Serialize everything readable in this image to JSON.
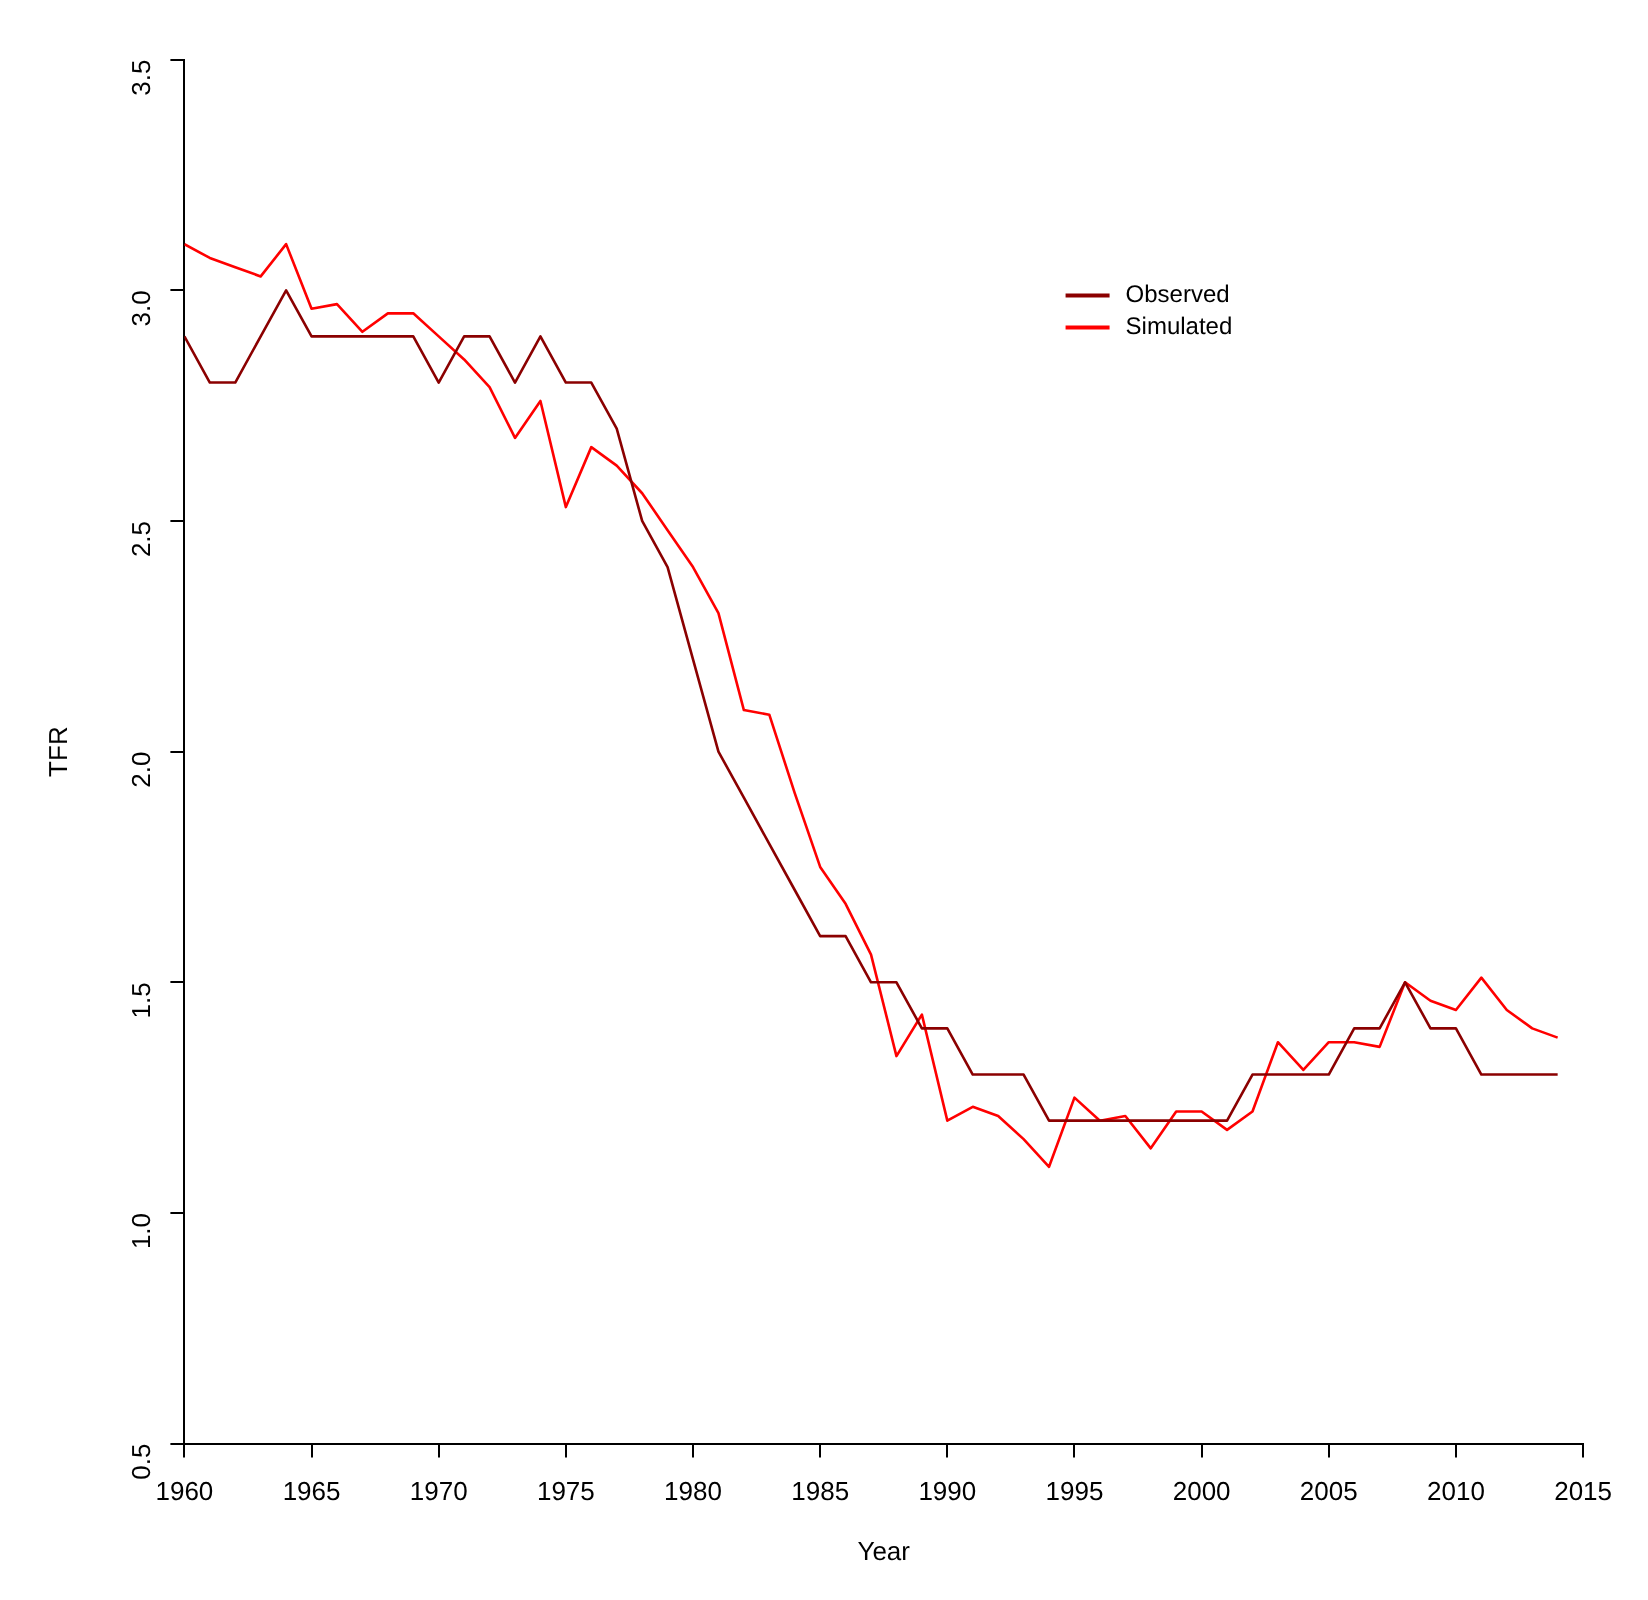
{
  "chart_data": {
    "type": "line",
    "xlabel": "Year",
    "ylabel": "TFR",
    "x": [
      1960,
      1961,
      1962,
      1963,
      1964,
      1965,
      1966,
      1967,
      1968,
      1969,
      1970,
      1971,
      1972,
      1973,
      1974,
      1975,
      1976,
      1977,
      1978,
      1979,
      1980,
      1981,
      1982,
      1983,
      1984,
      1985,
      1986,
      1987,
      1988,
      1989,
      1990,
      1991,
      1992,
      1993,
      1994,
      1995,
      1996,
      1997,
      1998,
      1999,
      2000,
      2001,
      2002,
      2003,
      2004,
      2005,
      2006,
      2007,
      2008,
      2009,
      2010,
      2011,
      2012,
      2013,
      2014
    ],
    "series": [
      {
        "name": "Observed",
        "color": "#8b0000",
        "values": [
          2.9,
          2.8,
          2.8,
          2.9,
          3.0,
          2.9,
          2.9,
          2.9,
          2.9,
          2.9,
          2.8,
          2.9,
          2.9,
          2.8,
          2.9,
          2.8,
          2.8,
          2.7,
          2.5,
          2.4,
          2.2,
          2.0,
          1.9,
          1.8,
          1.7,
          1.6,
          1.6,
          1.5,
          1.5,
          1.4,
          1.4,
          1.3,
          1.3,
          1.3,
          1.2,
          1.2,
          1.2,
          1.2,
          1.2,
          1.2,
          1.2,
          1.2,
          1.3,
          1.3,
          1.3,
          1.3,
          1.4,
          1.4,
          1.5,
          1.4,
          1.4,
          1.3,
          1.3,
          1.3,
          1.3
        ]
      },
      {
        "name": "Simulated",
        "color": "#ff0000",
        "values": [
          3.1,
          3.07,
          3.05,
          3.03,
          3.1,
          2.96,
          2.97,
          2.91,
          2.95,
          2.95,
          2.9,
          2.85,
          2.79,
          2.68,
          2.76,
          2.53,
          2.66,
          2.62,
          2.56,
          2.48,
          2.4,
          2.3,
          2.09,
          2.08,
          1.91,
          1.75,
          1.67,
          1.56,
          1.34,
          1.43,
          1.2,
          1.23,
          1.21,
          1.16,
          1.1,
          1.25,
          1.2,
          1.21,
          1.14,
          1.22,
          1.22,
          1.18,
          1.22,
          1.37,
          1.31,
          1.37,
          1.37,
          1.36,
          1.5,
          1.46,
          1.44,
          1.51,
          1.44,
          1.4,
          1.38
        ]
      }
    ],
    "xlim": [
      1960,
      2015
    ],
    "xticks": [
      1960,
      1965,
      1970,
      1975,
      1980,
      1985,
      1990,
      1995,
      2000,
      2005,
      2010,
      2015
    ],
    "ylim": [
      0.5,
      3.5
    ],
    "yticks": [
      0.5,
      {
        "value": 1,
        "label": "1.0"
      },
      1.5,
      {
        "value": 2,
        "label": "2.0"
      },
      2.5,
      {
        "value": 3,
        "label": "3.0"
      },
      3.5
    ],
    "grid": false,
    "legend": "top right",
    "marker": "none",
    "line_style": "solid"
  }
}
